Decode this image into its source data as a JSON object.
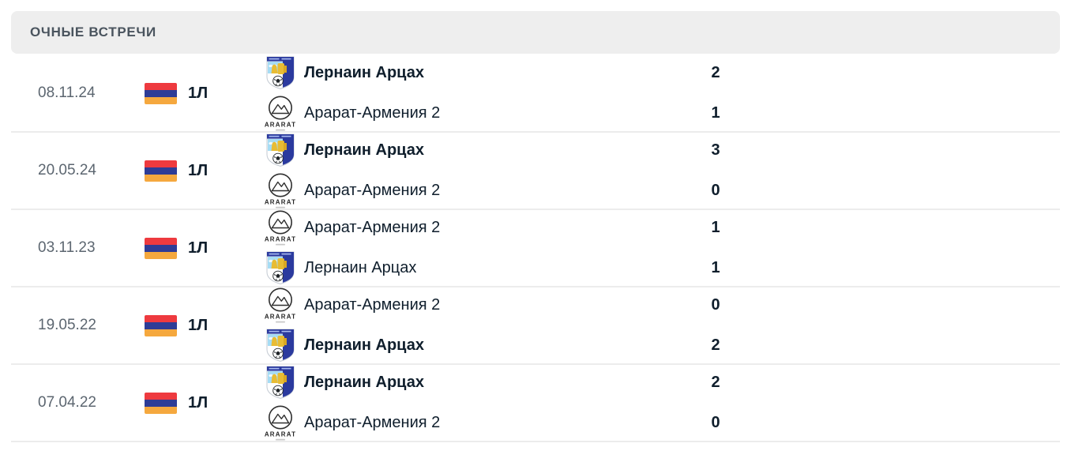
{
  "section": {
    "title": "ОЧНЫЕ ВСТРЕЧИ"
  },
  "logos": {
    "ararat_text": "ARARAT"
  },
  "colors": {
    "header_bg": "#eeeeee",
    "header_text": "#4a545e",
    "date_text": "#5c6670",
    "dark_text": "#0f1e2c",
    "separator": "#ececec",
    "flag_red": "#ee3a3f",
    "flag_blue": "#2e3c96",
    "flag_orange": "#f5a83e",
    "crest_blue": "#2b3a9e",
    "crest_yellow": "#e8bc34",
    "crest_sky": "#a6dcf4"
  },
  "matches": [
    {
      "date": "08.11.24",
      "league": "1Л",
      "home": {
        "name": "Лернаин Арцах",
        "score": "2",
        "winner": true,
        "logo": "lernayin-artsakh-crest"
      },
      "away": {
        "name": "Арарат-Армения 2",
        "score": "1",
        "winner": false,
        "logo": "ararat-armenia-2-logo"
      }
    },
    {
      "date": "20.05.24",
      "league": "1Л",
      "home": {
        "name": "Лернаин Арцах",
        "score": "3",
        "winner": true,
        "logo": "lernayin-artsakh-crest"
      },
      "away": {
        "name": "Арарат-Армения 2",
        "score": "0",
        "winner": false,
        "logo": "ararat-armenia-2-logo"
      }
    },
    {
      "date": "03.11.23",
      "league": "1Л",
      "home": {
        "name": "Арарат-Армения 2",
        "score": "1",
        "winner": false,
        "logo": "ararat-armenia-2-logo"
      },
      "away": {
        "name": "Лернаин Арцах",
        "score": "1",
        "winner": false,
        "logo": "lernayin-artsakh-crest"
      }
    },
    {
      "date": "19.05.22",
      "league": "1Л",
      "home": {
        "name": "Арарат-Армения 2",
        "score": "0",
        "winner": false,
        "logo": "ararat-armenia-2-logo"
      },
      "away": {
        "name": "Лернаин Арцах",
        "score": "2",
        "winner": true,
        "logo": "lernayin-artsakh-crest"
      }
    },
    {
      "date": "07.04.22",
      "league": "1Л",
      "home": {
        "name": "Лернаин Арцах",
        "score": "2",
        "winner": true,
        "logo": "lernayin-artsakh-crest"
      },
      "away": {
        "name": "Арарат-Армения 2",
        "score": "0",
        "winner": false,
        "logo": "ararat-armenia-2-logo"
      }
    }
  ]
}
